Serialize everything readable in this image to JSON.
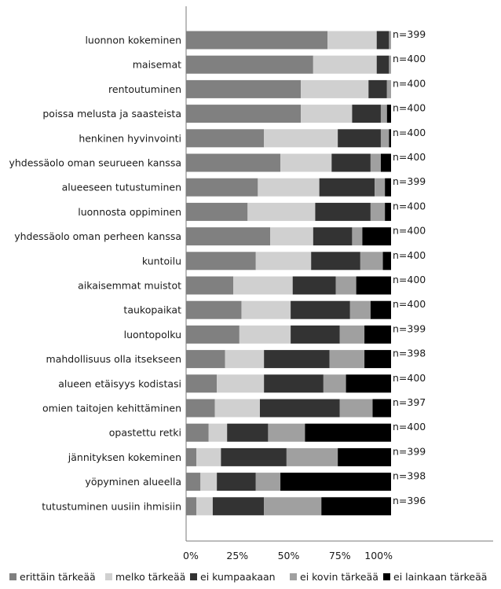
{
  "chart_data": {
    "type": "bar",
    "orientation": "horizontal",
    "stacked": true,
    "percent": true,
    "categories": [
      "luonnon kokeminen",
      "maisemat",
      "rentoutuminen",
      "poissa melusta ja saasteista",
      "henkinen hyvinvointi",
      "yhdessäolo oman seurueen kanssa",
      "alueeseen tutustuminen",
      "luonnosta oppiminen",
      "yhdessäolo oman perheen kanssa",
      "kuntoilu",
      "aikaisemmat muistot",
      "taukopaikat",
      "luontopolku",
      "mahdollisuus olla itsekseen",
      "alueen etäisyys kodistasi",
      "omien taitojen kehittäminen",
      "opastettu retki",
      "jännityksen kokeminen",
      "yöpyminen alueella",
      "tutustuminen uusiin ihmisiin"
    ],
    "n_labels": [
      "n=399",
      "n=400",
      "n=400",
      "n=400",
      "n=400",
      "n=400",
      "n=399",
      "n=400",
      "n=400",
      "n=400",
      "n=400",
      "n=400",
      "n=399",
      "n=398",
      "n=400",
      "n=397",
      "n=400",
      "n=399",
      "n=398",
      "n=396"
    ],
    "series": [
      {
        "name": "erittäin tärkeää",
        "color": "#808080",
        "values": [
          69,
          62,
          56,
          56,
          38,
          46,
          35,
          30,
          41,
          34,
          23,
          27,
          26,
          19,
          15,
          14,
          11,
          5,
          7,
          5
        ]
      },
      {
        "name": "melko tärkeää",
        "color": "#d0d0d0",
        "values": [
          24,
          31,
          33,
          25,
          36,
          25,
          30,
          33,
          21,
          27,
          29,
          24,
          25,
          19,
          23,
          22,
          9,
          12,
          8,
          8
        ]
      },
      {
        "name": "ei kumpaakaan",
        "color": "#333333",
        "values": [
          6,
          6,
          9,
          14,
          21,
          19,
          27,
          27,
          19,
          24,
          21,
          29,
          24,
          32,
          29,
          39,
          20,
          32,
          19,
          25
        ]
      },
      {
        "name": "ei kovin tärkeää",
        "color": "#a0a0a0",
        "values": [
          1,
          1,
          2,
          3,
          4,
          5,
          5,
          7,
          5,
          11,
          10,
          10,
          12,
          17,
          11,
          16,
          18,
          25,
          12,
          28
        ]
      },
      {
        "name": "ei lainkaan tärkeää",
        "color": "#000000",
        "values": [
          0,
          0,
          0,
          2,
          1,
          5,
          3,
          3,
          14,
          4,
          17,
          10,
          13,
          13,
          22,
          9,
          42,
          26,
          54,
          34
        ]
      }
    ],
    "x_ticks": [
      "0%",
      "25%",
      "50%",
      "75%",
      "100%"
    ],
    "xlim": [
      0,
      100
    ],
    "grid": false,
    "legend_position": "bottom"
  }
}
